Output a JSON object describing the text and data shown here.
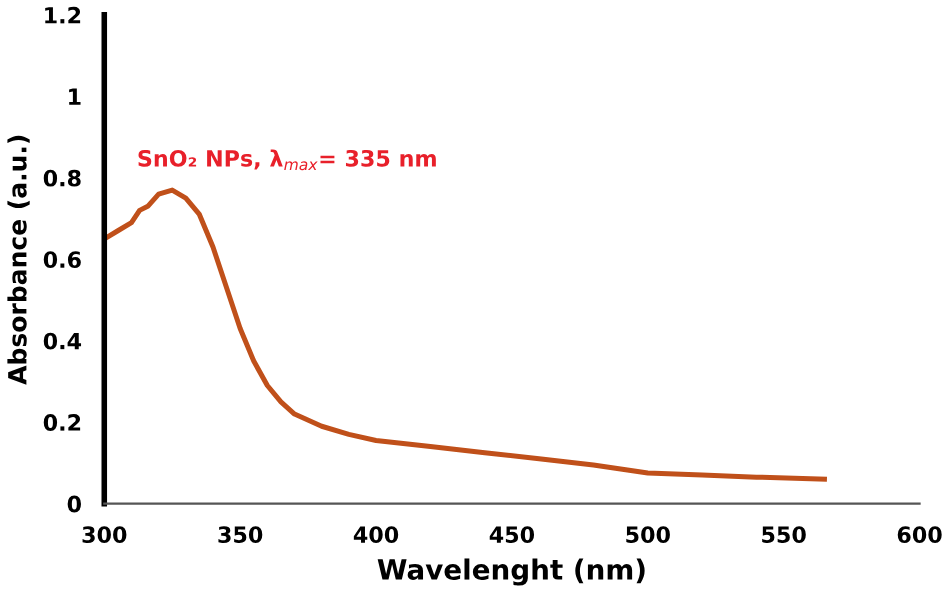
{
  "chart_data": {
    "type": "line",
    "xlabel": "Wavelenght (nm)",
    "ylabel": "Absorbance (a.u.)",
    "annotations": [
      "SnO₂ NPs, λ$_{max}$= 335 nm"
    ],
    "xlim": [
      300,
      600
    ],
    "xticks": [
      300,
      350,
      400,
      450,
      500,
      550,
      600
    ],
    "ylim": [
      0,
      1.2
    ],
    "yticks": [
      0,
      0.2,
      0.4,
      0.6,
      0.8,
      1,
      1.2
    ],
    "grid": false,
    "legend": false,
    "marker": "none",
    "line_style": "solid",
    "series": [
      {
        "color": "#c0501a",
        "x": [
          300,
          305,
          310,
          313,
          316,
          320,
          325,
          330,
          335,
          340,
          345,
          350,
          355,
          360,
          365,
          370,
          380,
          390,
          400,
          420,
          440,
          460,
          480,
          500,
          520,
          540,
          565
        ],
        "values": [
          0.65,
          0.67,
          0.69,
          0.72,
          0.73,
          0.76,
          0.77,
          0.75,
          0.71,
          0.63,
          0.53,
          0.43,
          0.35,
          0.29,
          0.25,
          0.22,
          0.19,
          0.17,
          0.155,
          0.14,
          0.125,
          0.11,
          0.095,
          0.075,
          0.07,
          0.065,
          0.06
        ]
      }
    ]
  }
}
